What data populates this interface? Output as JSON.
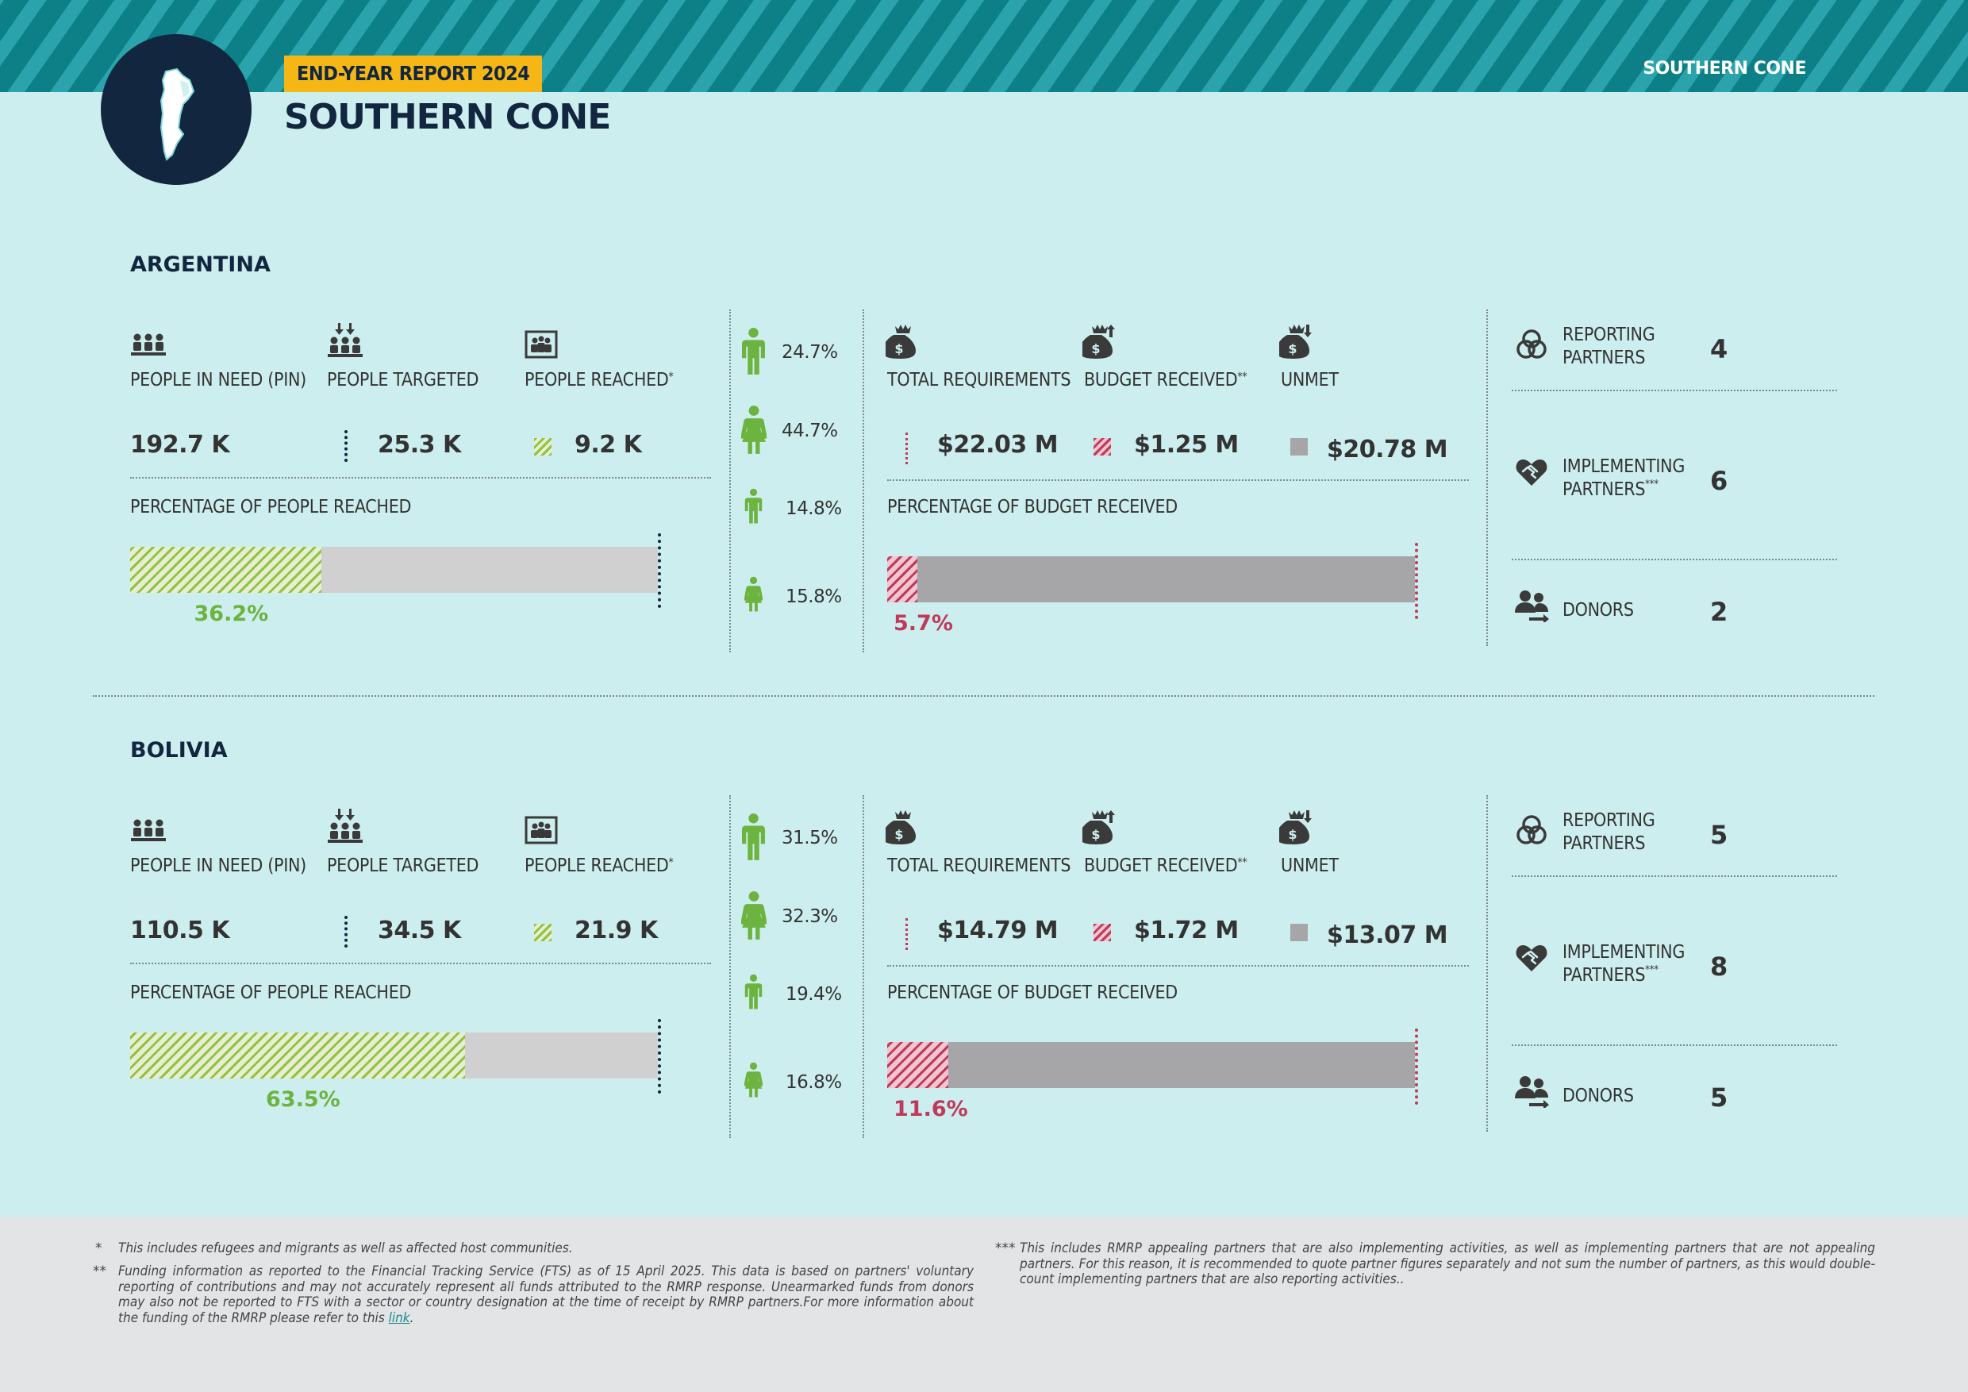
{
  "header": {
    "badge": "END-YEAR REPORT 2024",
    "title": "SOUTHERN CONE",
    "region_label": "SOUTHERN CONE"
  },
  "labels": {
    "pin": "PEOPLE IN NEED (PIN)",
    "targeted": "PEOPLE TARGETED",
    "reached": "PEOPLE REACHED",
    "reached_mark": "*",
    "pct_people": "PERCENTAGE OF PEOPLE REACHED",
    "total_req": "TOTAL REQUIREMENTS",
    "budget_received": "BUDGET RECEIVED",
    "budget_mark": "**",
    "unmet": "UNMET",
    "pct_budget": "PERCENTAGE OF BUDGET RECEIVED",
    "reporting_1": "REPORTING",
    "reporting_2": "PARTNERS",
    "implementing_1": "IMPLEMENTING",
    "implementing_2": "PARTNERS",
    "implementing_mark": "***",
    "donors": "DONORS"
  },
  "countries": [
    {
      "name": "ARGENTINA",
      "pin": "192.7 K",
      "targeted": "25.3 K",
      "reached": "9.2 K",
      "pct_people_label": "36.2%",
      "pct_people_value": 36.2,
      "demographics": [
        "24.7%",
        "44.7%",
        "14.8%",
        "15.8%"
      ],
      "total_requirements": "$22.03 M",
      "budget_received": "$1.25 M",
      "unmet": "$20.78 M",
      "pct_budget_label": "5.7%",
      "pct_budget_value": 5.7,
      "reporting_partners": "4",
      "implementing_partners": "6",
      "donors": "2"
    },
    {
      "name": "BOLIVIA",
      "pin": "110.5 K",
      "targeted": "34.5 K",
      "reached": "21.9 K",
      "pct_people_label": "63.5%",
      "pct_people_value": 63.5,
      "demographics": [
        "31.5%",
        "32.3%",
        "19.4%",
        "16.8%"
      ],
      "total_requirements": "$14.79 M",
      "budget_received": "$1.72 M",
      "unmet": "$13.07 M",
      "pct_budget_label": "11.6%",
      "pct_budget_value": 11.6,
      "reporting_partners": "5",
      "implementing_partners": "8",
      "donors": "5"
    }
  ],
  "footnotes": {
    "mark1": "*",
    "note1": "This includes refugees and migrants as well as affected host communities.",
    "mark2": "**",
    "note2": "Funding information as reported to the Financial Tracking Service (FTS) as of 15 April 2025. This data is based on partners' voluntary reporting of contributions and may not accurately represent all funds attributed to the RMRP response. Unearmarked funds from donors may also not be reported to FTS with a sector or country designation at the time of receipt by RMRP partners.For more information about the funding of the RMRP please refer to this",
    "link_text": "link",
    "mark3": "***",
    "note3": "This includes RMRP appealing partners that are also implementing activities, as well as implementing partners that are not appealing partners. For this reason, it is recommended to quote partner figures separately and not sum the number of partners, as this would double-count implementing partners that are also reporting activities.."
  },
  "colors": {
    "band_dark": "#0d7f86",
    "band_light": "#2aa3ac",
    "background": "#cdeeee",
    "navy": "#12263f",
    "badge_yellow": "#f6b716",
    "people_green": "#6cb33f",
    "budget_red": "#c0395a",
    "unmet_gray": "#a6a6a8"
  },
  "icons": [
    "argentina-map-icon",
    "people-in-need-icon",
    "people-targeted-icon",
    "people-reached-icon",
    "person-icon",
    "money-bag-icon",
    "money-bag-up-icon",
    "money-bag-down-icon",
    "partners-rings-icon",
    "handshake-heart-icon",
    "donors-icon"
  ]
}
